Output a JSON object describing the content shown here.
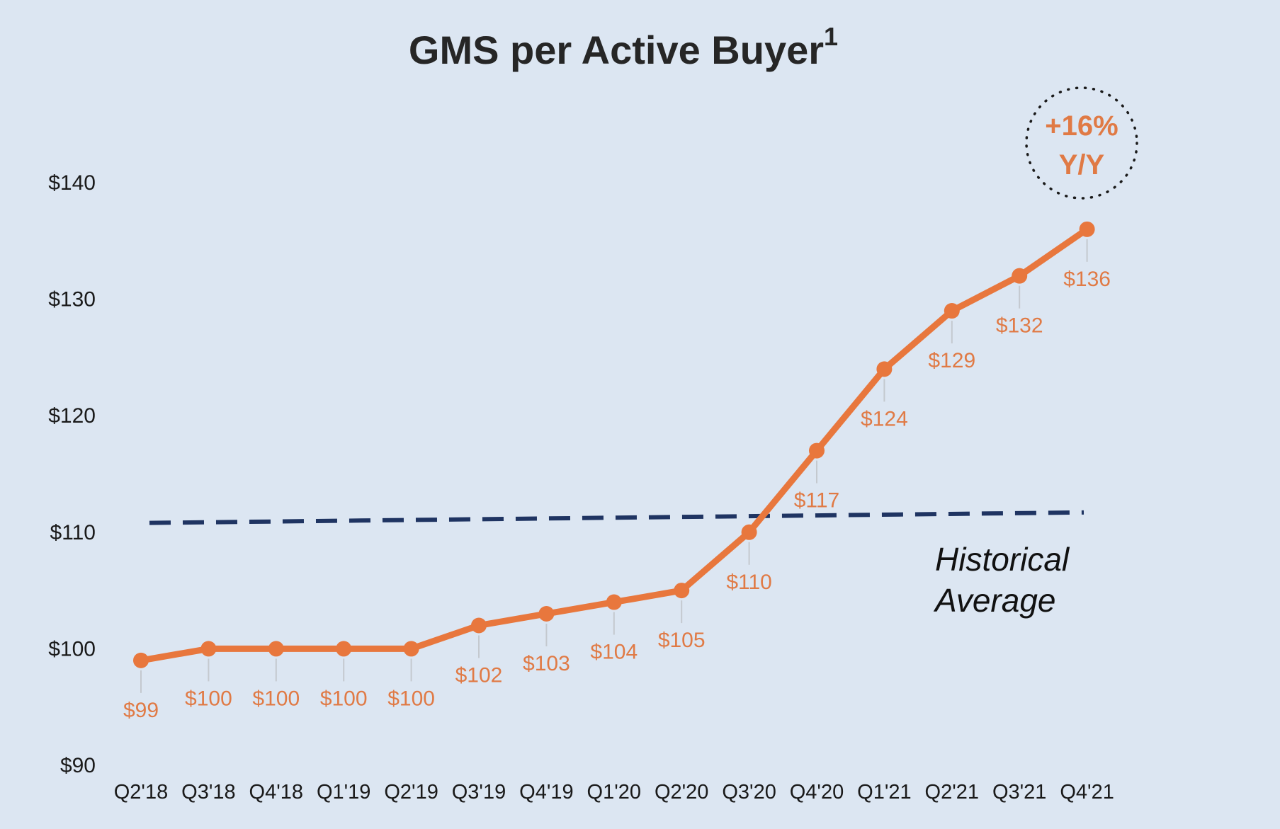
{
  "title": "GMS per Active Buyer",
  "title_superscript": "1",
  "badge": {
    "line1": "+16%",
    "line2": "Y/Y"
  },
  "average_label": {
    "line1": "Historical",
    "line2": "Average"
  },
  "colors": {
    "background": "#dce6f2",
    "series": "#e8773d",
    "average_line": "#1f3462",
    "label_text": "#e07a45",
    "leader_line": "#c4c9cf"
  },
  "chart_data": {
    "type": "line",
    "title": "GMS per Active Buyer",
    "categories": [
      "Q2'18",
      "Q3'18",
      "Q4'18",
      "Q1'19",
      "Q2'19",
      "Q3'19",
      "Q4'19",
      "Q1'20",
      "Q2'20",
      "Q3'20",
      "Q4'20",
      "Q1'21",
      "Q2'21",
      "Q3'21",
      "Q4'21"
    ],
    "series": [
      {
        "values": [
          99,
          100,
          100,
          100,
          100,
          102,
          103,
          104,
          105,
          110,
          117,
          124,
          129,
          132,
          136
        ],
        "data_labels": [
          "$99",
          "$100",
          "$100",
          "$100",
          "$100",
          "$102",
          "$103",
          "$104",
          "$105",
          "$110",
          "$117",
          "$124",
          "$129",
          "$132",
          "$136"
        ]
      }
    ],
    "reference_line": {
      "name": "Historical Average",
      "style": "dashed",
      "start_value": 110.8,
      "end_value": 111.7
    },
    "ylim": [
      90,
      140
    ],
    "yticks": [
      90,
      100,
      110,
      120,
      130,
      140
    ],
    "ytick_labels": [
      "$90",
      "$100",
      "$110",
      "$120",
      "$130",
      "$140"
    ],
    "xlabel": "",
    "ylabel": "",
    "grid": false,
    "legend": "none"
  }
}
